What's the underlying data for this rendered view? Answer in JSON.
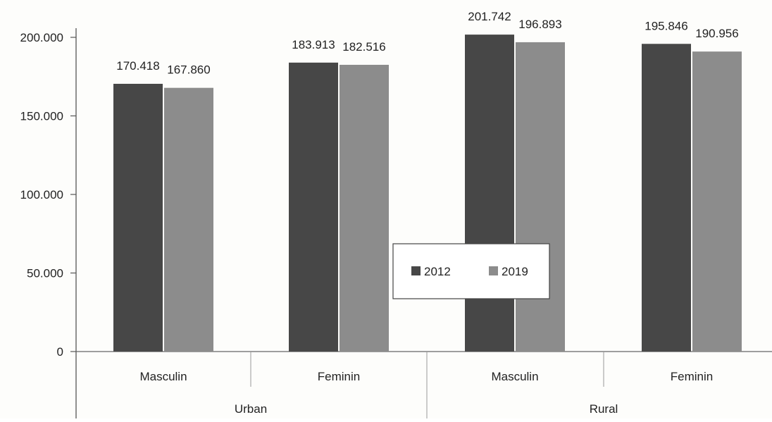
{
  "chart_data": {
    "type": "bar",
    "title": "",
    "xlabel": "",
    "ylabel": "",
    "ylim": [
      0,
      200000
    ],
    "y_ticks": [
      {
        "value": 0,
        "label": "0"
      },
      {
        "value": 50000,
        "label": "50.000"
      },
      {
        "value": 100000,
        "label": "100.000"
      },
      {
        "value": 150000,
        "label": "150.000"
      },
      {
        "value": 200000,
        "label": "200.000"
      }
    ],
    "groups": [
      {
        "label": "Urban",
        "categories": [
          "Masculin",
          "Feminin"
        ]
      },
      {
        "label": "Rural",
        "categories": [
          "Masculin",
          "Feminin"
        ]
      }
    ],
    "categories": [
      "Masculin",
      "Feminin",
      "Masculin",
      "Feminin"
    ],
    "series": [
      {
        "name": "2012",
        "color": "#474747",
        "values": [
          170418,
          183913,
          201742,
          195846
        ],
        "labels": [
          "170.418",
          "183.913",
          "201.742",
          "195.846"
        ]
      },
      {
        "name": "2019",
        "color": "#8c8c8c",
        "values": [
          167860,
          182516,
          196893,
          190956
        ],
        "labels": [
          "167.860",
          "182.516",
          "196.893",
          "190.956"
        ]
      }
    ],
    "grid": false,
    "legend": "center"
  }
}
